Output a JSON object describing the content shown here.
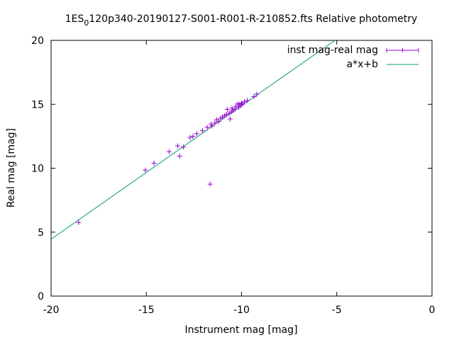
{
  "chart_data": {
    "type": "scatter",
    "title": {
      "pre": "1ES",
      "sub": "0",
      "post": "120p340-20190127-S001-R001-R-210852.fts Relative photometry"
    },
    "xlabel": "Instrument mag [mag]",
    "ylabel": "Real mag [mag]",
    "xlim": [
      -20,
      0
    ],
    "ylim": [
      0,
      20
    ],
    "xticks": [
      -20,
      -15,
      -10,
      -5,
      0
    ],
    "yticks": [
      0,
      5,
      10,
      15,
      20
    ],
    "xtick_labels": [
      "-20",
      "-15",
      "-10",
      "-5",
      "0"
    ],
    "ytick_labels": [
      "0",
      "5",
      "10",
      "15",
      "20"
    ],
    "grid": false,
    "legend_position": "top-right",
    "series": [
      {
        "name": "inst mag-real mag",
        "kind": "points-with-xerror",
        "color": "#9400d3",
        "points": [
          {
            "x": -18.55,
            "y": 5.75
          },
          {
            "x": -15.05,
            "y": 9.85
          },
          {
            "x": -14.6,
            "y": 10.4
          },
          {
            "x": -13.8,
            "y": 11.3
          },
          {
            "x": -13.35,
            "y": 11.75
          },
          {
            "x": -13.25,
            "y": 10.95
          },
          {
            "x": -13.05,
            "y": 11.65
          },
          {
            "x": -12.7,
            "y": 12.4
          },
          {
            "x": -12.55,
            "y": 12.5
          },
          {
            "x": -12.35,
            "y": 12.7
          },
          {
            "x": -12.05,
            "y": 12.95
          },
          {
            "x": -11.8,
            "y": 13.2
          },
          {
            "x": -11.65,
            "y": 8.75
          },
          {
            "x": -11.6,
            "y": 13.45
          },
          {
            "x": -11.55,
            "y": 13.3
          },
          {
            "x": -11.4,
            "y": 13.55
          },
          {
            "x": -11.3,
            "y": 13.8
          },
          {
            "x": -11.2,
            "y": 13.65
          },
          {
            "x": -11.1,
            "y": 13.9
          },
          {
            "x": -11.0,
            "y": 14.0
          },
          {
            "x": -10.9,
            "y": 14.1
          },
          {
            "x": -10.8,
            "y": 14.2
          },
          {
            "x": -10.75,
            "y": 14.6
          },
          {
            "x": -10.65,
            "y": 14.3
          },
          {
            "x": -10.6,
            "y": 13.85
          },
          {
            "x": -10.55,
            "y": 14.4
          },
          {
            "x": -10.5,
            "y": 14.7
          },
          {
            "x": -10.45,
            "y": 14.5
          },
          {
            "x": -10.35,
            "y": 14.6
          },
          {
            "x": -10.3,
            "y": 14.85
          },
          {
            "x": -10.2,
            "y": 15.05
          },
          {
            "x": -10.15,
            "y": 14.75
          },
          {
            "x": -10.1,
            "y": 15.0
          },
          {
            "x": -10.05,
            "y": 14.9
          },
          {
            "x": -10.0,
            "y": 15.1
          },
          {
            "x": -9.95,
            "y": 15.0
          },
          {
            "x": -9.85,
            "y": 15.2
          },
          {
            "x": -9.7,
            "y": 15.3
          },
          {
            "x": -9.35,
            "y": 15.6
          },
          {
            "x": -9.2,
            "y": 15.8
          }
        ]
      },
      {
        "name": "a*x+b",
        "kind": "line",
        "color": "#009e73",
        "x": [
          -20,
          -5.1
        ],
        "y": [
          4.45,
          20
        ]
      }
    ]
  }
}
